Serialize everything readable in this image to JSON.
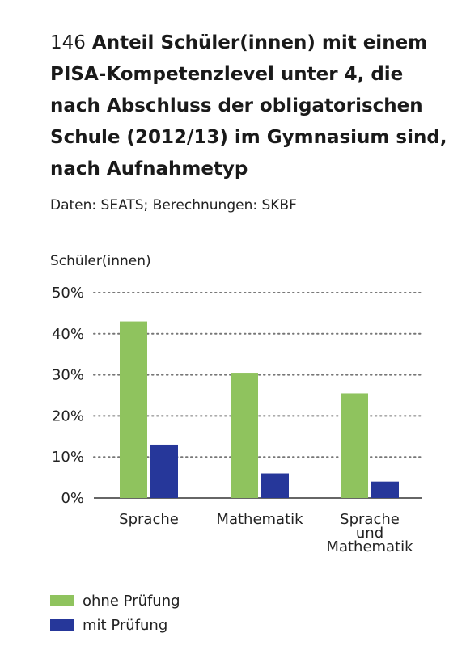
{
  "figure": {
    "number": "146",
    "title": "Anteil Schüler(innen) mit einem PISA-Kompetenzlevel unter 4, die nach Abschluss der obligatorischen Schule (2012/13) im Gymnasium sind, nach Aufnahmetyp",
    "source": "Daten: SEATS; Berechnungen: SKBF"
  },
  "colors": {
    "series_0": "#8fc35e",
    "series_1": "#26379a",
    "grid": "#777777",
    "axis": "#333333"
  },
  "chart_data": {
    "type": "bar",
    "categories": [
      "Sprache",
      "Mathematik",
      "Sprache und Mathematik"
    ],
    "category_lines": [
      [
        "Sprache"
      ],
      [
        "Mathematik"
      ],
      [
        "Sprache",
        "und",
        "Mathematik"
      ]
    ],
    "series": [
      {
        "name": "ohne Prüfung",
        "values": [
          43,
          30.5,
          25.5
        ]
      },
      {
        "name": "mit Prüfung",
        "values": [
          13,
          6,
          4
        ]
      }
    ],
    "ylabel": "Schüler(innen)",
    "ylim": [
      0,
      50
    ],
    "yticks": [
      "0%",
      "10%",
      "20%",
      "30%",
      "40%",
      "50%"
    ],
    "grid": true,
    "legend": "bottom-left"
  }
}
